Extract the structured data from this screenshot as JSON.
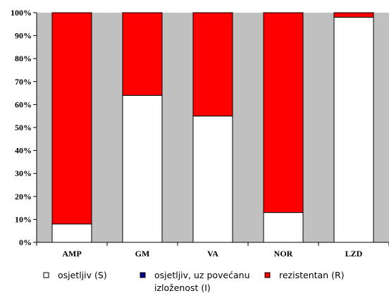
{
  "chart_data": {
    "type": "bar",
    "stacked": true,
    "categories": [
      "AMP",
      "GM",
      "VA",
      "NOR",
      "LZD"
    ],
    "series": [
      {
        "name": "osjetljiv (S)",
        "color": "#ffffff",
        "values": [
          8,
          64,
          55,
          13,
          98
        ]
      },
      {
        "name": "osjetljiv, uz povećanu izloženost (I)",
        "color": "#00008b",
        "values": [
          0,
          0,
          0,
          0,
          0
        ]
      },
      {
        "name": "rezistentan (R)",
        "color": "#ff0000",
        "values": [
          92,
          36,
          45,
          87,
          2
        ]
      }
    ],
    "ylim": [
      0,
      100
    ],
    "yticks": [
      "0%",
      "10%",
      "20%",
      "30%",
      "40%",
      "50%",
      "60%",
      "70%",
      "80%",
      "90%",
      "100%"
    ],
    "plot_background": "#c0c0c0",
    "grid": false,
    "legend_position": "bottom",
    "legend_lines": [
      [
        "osjetljiv (S)"
      ],
      [
        "osjetljiv, uz povećanu",
        "izloženost (I)"
      ],
      [
        "rezistentan (R)"
      ]
    ]
  }
}
